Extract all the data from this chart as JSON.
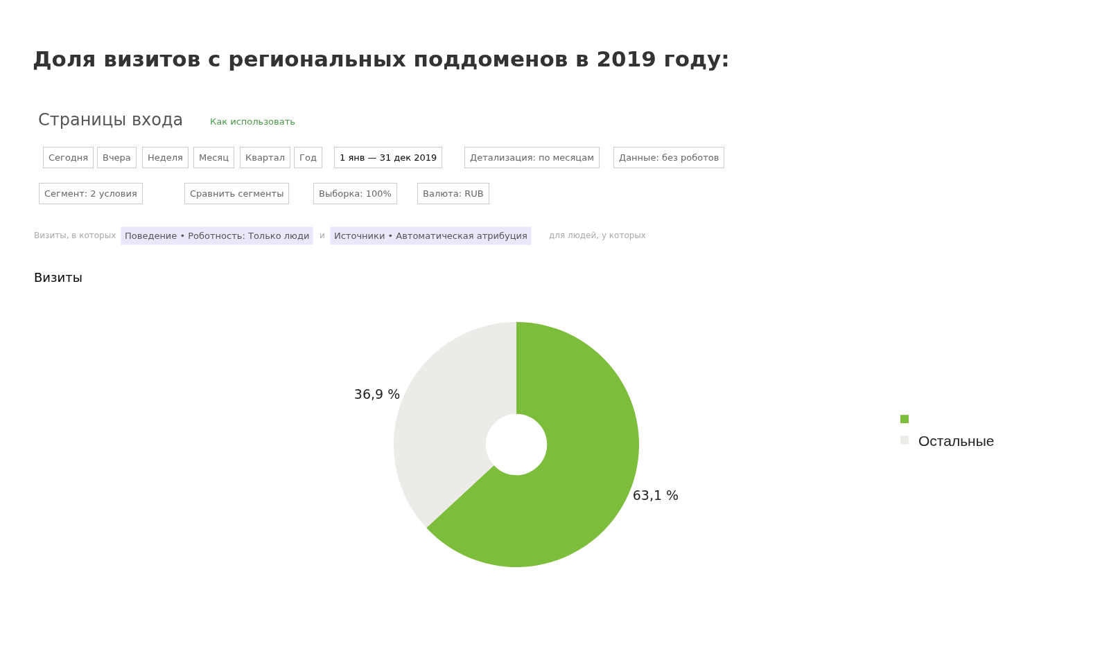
{
  "chart_data": {
    "type": "donut",
    "title": "Доля визитов с региональных поддоменов в 2019 году:",
    "subtitle": "Страницы входа",
    "categories": [
      null,
      "Остальные"
    ],
    "values": [
      63.1,
      36.9
    ],
    "colors": [
      "#7cbd3b",
      "#ecebe7"
    ],
    "value_labels": [
      "63,1 %",
      "36,9 %"
    ],
    "legend": "right",
    "annotations": [
      "Как использовать",
      "Сегодня",
      "Вчера",
      "Неделя",
      "Месяц",
      "Квартал",
      "Год",
      "1 янв — 31 дек 2019",
      "Детализация: по месяцам",
      "Данные: без роботов",
      "Сегмент: 2 условия",
      "Сравнить сегменты",
      "Выборка: 100%",
      "Валюта: RUB",
      "Визиты, в которых",
      "Поведение • Роботность: Только люди",
      "и",
      "Источники • Автоматическая атрибуция",
      "для людей, у которых",
      "Визиты"
    ]
  }
}
